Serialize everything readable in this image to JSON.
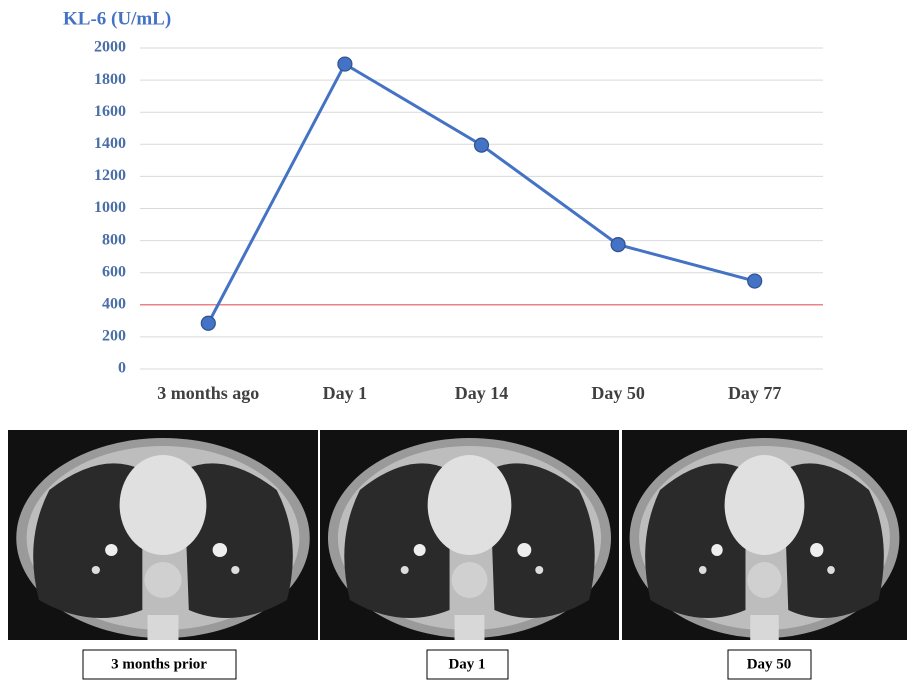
{
  "chart_data": {
    "type": "line",
    "title": "KL-6 (U/mL)",
    "categories": [
      "3 months ago",
      "Day 1",
      "Day 14",
      "Day 50",
      "Day 77"
    ],
    "values": [
      285,
      1900,
      1395,
      775,
      548
    ],
    "color": "#4472c4",
    "ylim": [
      0,
      2000
    ],
    "yticks": [
      0,
      200,
      400,
      600,
      800,
      1000,
      1200,
      1400,
      1600,
      1800,
      2000
    ],
    "grid": true,
    "reference_line": {
      "value": 400,
      "color": "#e8606a"
    }
  },
  "images": [
    {
      "caption": "3 months prior"
    },
    {
      "caption": "Day 1"
    },
    {
      "caption": "Day 50"
    }
  ]
}
